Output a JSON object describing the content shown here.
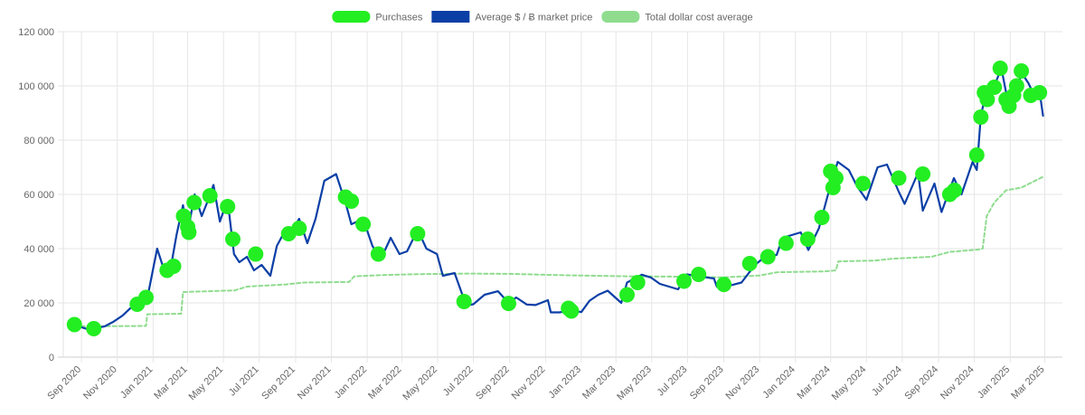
{
  "chart_data": {
    "type": "line",
    "legend": {
      "position": "top-center",
      "items": [
        {
          "label": "Purchases",
          "color": "#22ee22",
          "style": "point"
        },
        {
          "label": "Average $ / Ƀ market price",
          "color": "#0b3fa6",
          "style": "line"
        },
        {
          "label": "Total dollar cost average",
          "color": "#8fdc8f",
          "style": "dashed"
        }
      ]
    },
    "y_axis": {
      "min": 0,
      "max": 120000,
      "ticks": [
        {
          "value": 0,
          "label": "0"
        },
        {
          "value": 20000,
          "label": "20 000"
        },
        {
          "value": 40000,
          "label": "40 000"
        },
        {
          "value": 60000,
          "label": "60 000"
        },
        {
          "value": 80000,
          "label": "80 000"
        },
        {
          "value": 100000,
          "label": "100 000"
        },
        {
          "value": 120000,
          "label": "120 000"
        }
      ]
    },
    "x_axis": {
      "min": "2020-08-01",
      "max": "2025-03-31",
      "ticks": [
        {
          "date": "2020-09-01",
          "label": "Sep 2020"
        },
        {
          "date": "2020-11-01",
          "label": "Nov 2020"
        },
        {
          "date": "2021-01-01",
          "label": "Jan 2021"
        },
        {
          "date": "2021-03-01",
          "label": "Mar 2021"
        },
        {
          "date": "2021-05-01",
          "label": "May 2021"
        },
        {
          "date": "2021-07-01",
          "label": "Jul 2021"
        },
        {
          "date": "2021-09-01",
          "label": "Sep 2021"
        },
        {
          "date": "2021-11-01",
          "label": "Nov 2021"
        },
        {
          "date": "2022-01-01",
          "label": "Jan 2022"
        },
        {
          "date": "2022-03-01",
          "label": "Mar 2022"
        },
        {
          "date": "2022-05-01",
          "label": "May 2022"
        },
        {
          "date": "2022-07-01",
          "label": "Jul 2022"
        },
        {
          "date": "2022-09-01",
          "label": "Sep 2022"
        },
        {
          "date": "2022-11-01",
          "label": "Nov 2022"
        },
        {
          "date": "2023-01-01",
          "label": "Jan 2023"
        },
        {
          "date": "2023-03-01",
          "label": "Mar 2023"
        },
        {
          "date": "2023-05-01",
          "label": "May 2023"
        },
        {
          "date": "2023-07-01",
          "label": "Jul 2023"
        },
        {
          "date": "2023-09-01",
          "label": "Sep 2023"
        },
        {
          "date": "2023-11-01",
          "label": "Nov 2023"
        },
        {
          "date": "2024-01-01",
          "label": "Jan 2024"
        },
        {
          "date": "2024-03-01",
          "label": "Mar 2024"
        },
        {
          "date": "2024-05-01",
          "label": "May 2024"
        },
        {
          "date": "2024-07-01",
          "label": "Jul 2024"
        },
        {
          "date": "2024-09-01",
          "label": "Sep 2024"
        },
        {
          "date": "2024-11-01",
          "label": "Nov 2024"
        },
        {
          "date": "2025-01-01",
          "label": "Jan 2025"
        },
        {
          "date": "2025-03-01",
          "label": "Mar 2025"
        }
      ]
    },
    "grid": true,
    "series": [
      {
        "name": "Average $ / Ƀ market price",
        "color": "#0b3fa6",
        "points": [
          [
            "2020-08-10",
            11800
          ],
          [
            "2020-08-25",
            11500
          ],
          [
            "2020-09-10",
            10400
          ],
          [
            "2020-09-25",
            10700
          ],
          [
            "2020-10-10",
            11300
          ],
          [
            "2020-10-25",
            13000
          ],
          [
            "2020-11-10",
            15300
          ],
          [
            "2020-11-25",
            18400
          ],
          [
            "2020-12-10",
            18300
          ],
          [
            "2020-12-25",
            24700
          ],
          [
            "2021-01-08",
            40000
          ],
          [
            "2021-01-20",
            32000
          ],
          [
            "2021-02-01",
            34000
          ],
          [
            "2021-02-10",
            45000
          ],
          [
            "2021-02-21",
            56000
          ],
          [
            "2021-03-01",
            46000
          ],
          [
            "2021-03-13",
            60000
          ],
          [
            "2021-03-25",
            52000
          ],
          [
            "2021-04-05",
            58000
          ],
          [
            "2021-04-14",
            63500
          ],
          [
            "2021-04-25",
            50000
          ],
          [
            "2021-05-08",
            58000
          ],
          [
            "2021-05-19",
            38000
          ],
          [
            "2021-05-28",
            35000
          ],
          [
            "2021-06-10",
            37000
          ],
          [
            "2021-06-22",
            32000
          ],
          [
            "2021-07-05",
            34000
          ],
          [
            "2021-07-20",
            30000
          ],
          [
            "2021-07-31",
            41000
          ],
          [
            "2021-08-15",
            47000
          ],
          [
            "2021-08-30",
            48000
          ],
          [
            "2021-09-07",
            51000
          ],
          [
            "2021-09-21",
            42000
          ],
          [
            "2021-10-05",
            51000
          ],
          [
            "2021-10-20",
            65000
          ],
          [
            "2021-11-09",
            67500
          ],
          [
            "2021-11-25",
            57000
          ],
          [
            "2021-12-05",
            49000
          ],
          [
            "2021-12-25",
            51000
          ],
          [
            "2022-01-10",
            41000
          ],
          [
            "2022-01-24",
            36000
          ],
          [
            "2022-02-10",
            44000
          ],
          [
            "2022-02-25",
            38000
          ],
          [
            "2022-03-10",
            39000
          ],
          [
            "2022-03-28",
            47000
          ],
          [
            "2022-04-12",
            40000
          ],
          [
            "2022-04-30",
            38000
          ],
          [
            "2022-05-10",
            30000
          ],
          [
            "2022-05-30",
            31000
          ],
          [
            "2022-06-13",
            22500
          ],
          [
            "2022-06-18",
            19000
          ],
          [
            "2022-07-01",
            19500
          ],
          [
            "2022-07-20",
            23000
          ],
          [
            "2022-08-12",
            24300
          ],
          [
            "2022-08-30",
            20000
          ],
          [
            "2022-09-12",
            22000
          ],
          [
            "2022-09-30",
            19400
          ],
          [
            "2022-10-15",
            19200
          ],
          [
            "2022-11-05",
            21000
          ],
          [
            "2022-11-10",
            16500
          ],
          [
            "2022-11-25",
            16500
          ],
          [
            "2022-12-15",
            17300
          ],
          [
            "2023-01-01",
            16600
          ],
          [
            "2023-01-15",
            20800
          ],
          [
            "2023-01-30",
            23000
          ],
          [
            "2023-02-15",
            24500
          ],
          [
            "2023-03-10",
            20000
          ],
          [
            "2023-03-20",
            27500
          ],
          [
            "2023-04-14",
            30400
          ],
          [
            "2023-04-30",
            29300
          ],
          [
            "2023-05-15",
            27000
          ],
          [
            "2023-06-15",
            25000
          ],
          [
            "2023-06-30",
            30500
          ],
          [
            "2023-07-15",
            30000
          ],
          [
            "2023-08-15",
            29000
          ],
          [
            "2023-08-20",
            26000
          ],
          [
            "2023-09-15",
            26600
          ],
          [
            "2023-10-01",
            27500
          ],
          [
            "2023-10-24",
            34000
          ],
          [
            "2023-11-10",
            37000
          ],
          [
            "2023-11-30",
            37700
          ],
          [
            "2023-12-10",
            44000
          ],
          [
            "2024-01-10",
            46000
          ],
          [
            "2024-01-23",
            39500
          ],
          [
            "2024-02-10",
            47500
          ],
          [
            "2024-02-28",
            62000
          ],
          [
            "2024-03-13",
            72000
          ],
          [
            "2024-04-01",
            69000
          ],
          [
            "2024-04-15",
            63000
          ],
          [
            "2024-05-01",
            58000
          ],
          [
            "2024-05-20",
            70000
          ],
          [
            "2024-06-05",
            71000
          ],
          [
            "2024-06-25",
            61000
          ],
          [
            "2024-07-05",
            56500
          ],
          [
            "2024-07-28",
            68000
          ],
          [
            "2024-08-05",
            54000
          ],
          [
            "2024-08-25",
            64000
          ],
          [
            "2024-09-06",
            53500
          ],
          [
            "2024-09-27",
            66000
          ],
          [
            "2024-10-10",
            60000
          ],
          [
            "2024-10-29",
            72000
          ],
          [
            "2024-11-05",
            69000
          ],
          [
            "2024-11-12",
            89000
          ],
          [
            "2024-11-22",
            98500
          ],
          [
            "2024-12-05",
            100000
          ],
          [
            "2024-12-17",
            106500
          ],
          [
            "2024-12-30",
            92000
          ],
          [
            "2025-01-10",
            95000
          ],
          [
            "2025-01-20",
            105000
          ],
          [
            "2025-02-01",
            101000
          ],
          [
            "2025-02-10",
            97000
          ],
          [
            "2025-02-20",
            98000
          ],
          [
            "2025-02-26",
            89000
          ]
        ]
      },
      {
        "name": "Total dollar cost average",
        "color": "#8fdc8f",
        "dashed": true,
        "points": [
          [
            "2020-08-10",
            11900
          ],
          [
            "2020-09-10",
            11300
          ],
          [
            "2020-10-15",
            11400
          ],
          [
            "2020-12-20",
            11500
          ],
          [
            "2020-12-22",
            15800
          ],
          [
            "2021-02-18",
            16000
          ],
          [
            "2021-02-21",
            24000
          ],
          [
            "2021-05-20",
            24600
          ],
          [
            "2021-06-10",
            26000
          ],
          [
            "2021-08-15",
            26800
          ],
          [
            "2021-09-15",
            27500
          ],
          [
            "2021-12-01",
            27700
          ],
          [
            "2021-12-10",
            29800
          ],
          [
            "2022-02-01",
            30300
          ],
          [
            "2022-04-01",
            30600
          ],
          [
            "2022-06-20",
            30800
          ],
          [
            "2022-09-01",
            30700
          ],
          [
            "2022-12-01",
            30200
          ],
          [
            "2023-03-20",
            29800
          ],
          [
            "2023-06-01",
            29700
          ],
          [
            "2023-09-01",
            29400
          ],
          [
            "2023-11-01",
            30100
          ],
          [
            "2023-12-01",
            31300
          ],
          [
            "2024-02-20",
            31600
          ],
          [
            "2024-03-10",
            32000
          ],
          [
            "2024-03-14",
            35300
          ],
          [
            "2024-05-15",
            35600
          ],
          [
            "2024-06-15",
            36300
          ],
          [
            "2024-08-20",
            37000
          ],
          [
            "2024-09-20",
            38800
          ],
          [
            "2024-11-10",
            39700
          ],
          [
            "2024-11-15",
            40000
          ],
          [
            "2024-11-22",
            52000
          ],
          [
            "2024-12-05",
            57000
          ],
          [
            "2024-12-25",
            61500
          ],
          [
            "2025-01-20",
            62500
          ],
          [
            "2025-02-28",
            66700
          ]
        ]
      },
      {
        "name": "Purchases",
        "color": "#22ee22",
        "points": [
          [
            "2020-08-20",
            12000
          ],
          [
            "2020-09-22",
            10500
          ],
          [
            "2020-12-05",
            19500
          ],
          [
            "2020-12-20",
            22000
          ],
          [
            "2021-01-25",
            32000
          ],
          [
            "2021-02-05",
            33500
          ],
          [
            "2021-02-22",
            52000
          ],
          [
            "2021-03-01",
            48000
          ],
          [
            "2021-03-03",
            46000
          ],
          [
            "2021-03-12",
            57000
          ],
          [
            "2021-04-08",
            59500
          ],
          [
            "2021-05-08",
            55500
          ],
          [
            "2021-05-17",
            43500
          ],
          [
            "2021-06-25",
            38000
          ],
          [
            "2021-08-20",
            45500
          ],
          [
            "2021-09-07",
            47500
          ],
          [
            "2021-11-25",
            59000
          ],
          [
            "2021-12-05",
            57500
          ],
          [
            "2021-12-25",
            49000
          ],
          [
            "2022-01-20",
            38000
          ],
          [
            "2022-03-28",
            45500
          ],
          [
            "2022-06-15",
            20500
          ],
          [
            "2022-08-30",
            19800
          ],
          [
            "2022-12-10",
            18000
          ],
          [
            "2022-12-15",
            17000
          ],
          [
            "2023-03-20",
            23000
          ],
          [
            "2023-04-07",
            27500
          ],
          [
            "2023-06-25",
            28000
          ],
          [
            "2023-07-20",
            30500
          ],
          [
            "2023-09-01",
            26800
          ],
          [
            "2023-10-15",
            34500
          ],
          [
            "2023-11-15",
            37000
          ],
          [
            "2023-12-16",
            42000
          ],
          [
            "2024-01-22",
            43500
          ],
          [
            "2024-02-15",
            51500
          ],
          [
            "2024-03-01",
            68500
          ],
          [
            "2024-03-10",
            66000
          ],
          [
            "2024-03-05",
            62500
          ],
          [
            "2024-04-25",
            64000
          ],
          [
            "2024-06-25",
            66000
          ],
          [
            "2024-08-05",
            67500
          ],
          [
            "2024-09-20",
            60000
          ],
          [
            "2024-09-28",
            61500
          ],
          [
            "2024-11-05",
            74500
          ],
          [
            "2024-11-12",
            88500
          ],
          [
            "2024-11-18",
            97500
          ],
          [
            "2024-11-23",
            95000
          ],
          [
            "2024-12-05",
            99500
          ],
          [
            "2024-12-15",
            106500
          ],
          [
            "2024-12-25",
            95000
          ],
          [
            "2024-12-30",
            92500
          ],
          [
            "2025-01-07",
            96500
          ],
          [
            "2025-01-12",
            100000
          ],
          [
            "2025-01-20",
            105500
          ],
          [
            "2025-02-05",
            96500
          ],
          [
            "2025-02-20",
            97500
          ]
        ]
      }
    ]
  }
}
